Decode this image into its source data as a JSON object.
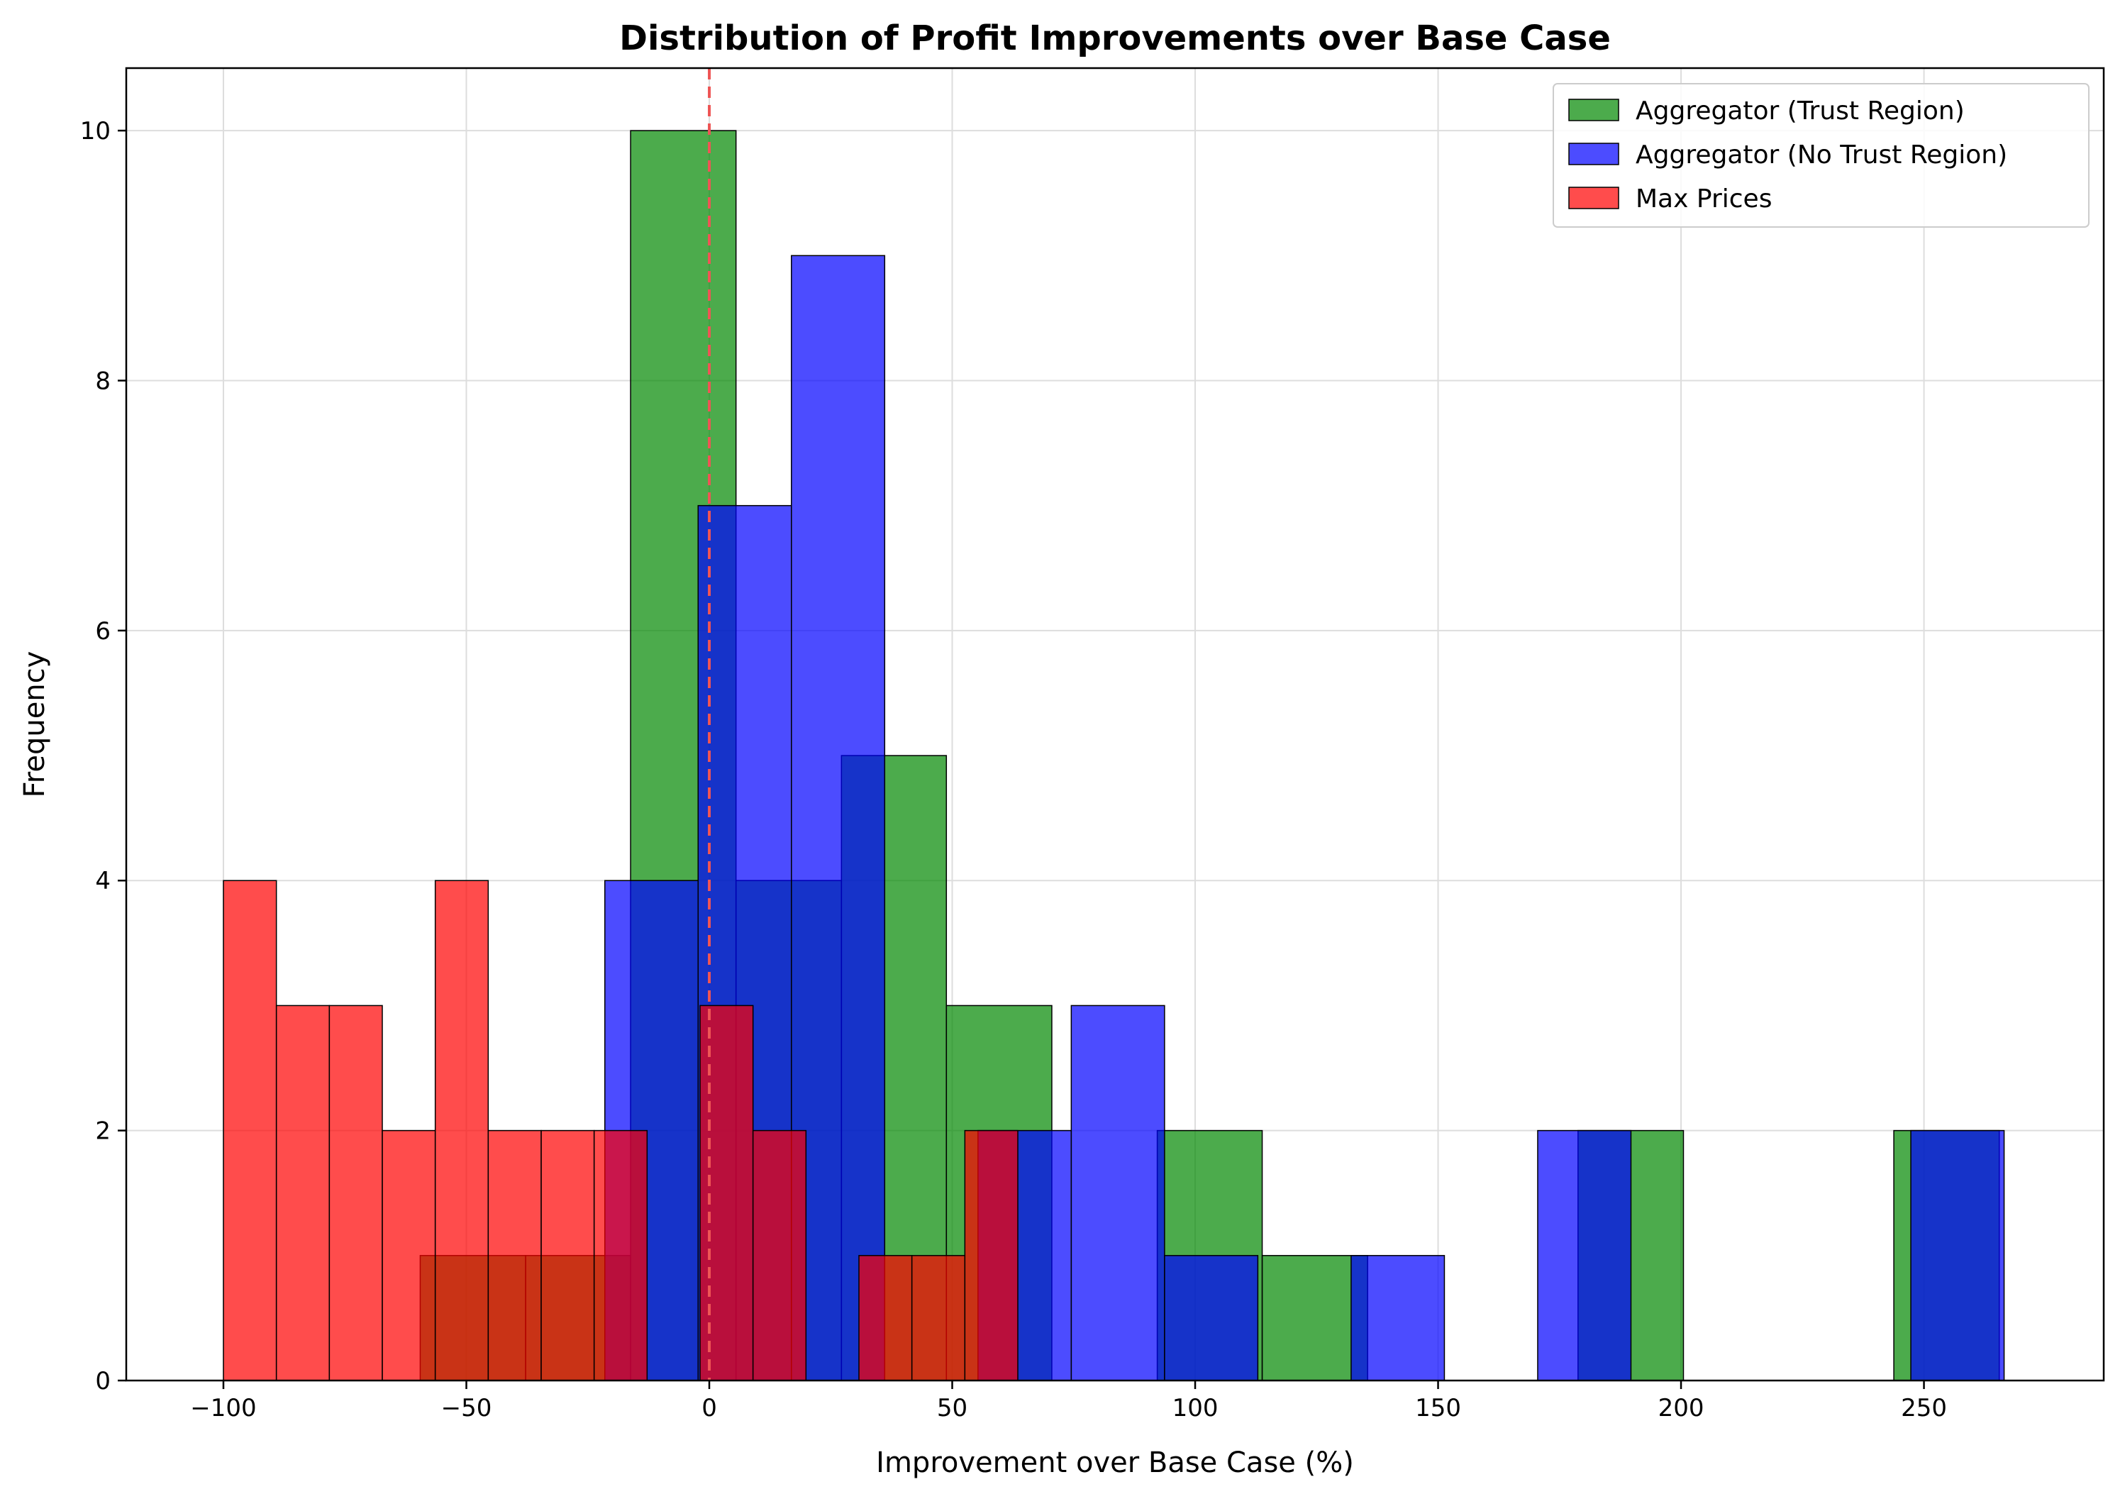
{
  "chart_data": {
    "type": "bar",
    "title": "Distribution of Profit Improvements over Base Case",
    "xlabel": "Improvement over Base Case (%)",
    "ylabel": "Frequency",
    "xlim": [
      -120,
      287
    ],
    "ylim": [
      0,
      10.5
    ],
    "xticks": [
      -100,
      -50,
      0,
      50,
      100,
      150,
      200,
      250
    ],
    "xtick_labels": [
      "−100",
      "−50",
      "0",
      "50",
      "100",
      "150",
      "200",
      "250"
    ],
    "yticks": [
      0,
      2,
      4,
      6,
      8,
      10
    ],
    "ytick_labels": [
      "0",
      "2",
      "4",
      "6",
      "8",
      "10"
    ],
    "grid": true,
    "legend_position": "top-right",
    "reference_line": {
      "x": 0,
      "color": "#ee5555",
      "style": "dashed"
    },
    "series": [
      {
        "name": "Aggregator (Trust Region)",
        "color": "#008800",
        "bins": [
          {
            "x0": -59.5,
            "x1": -37.8,
            "count": 1
          },
          {
            "x0": -37.8,
            "x1": -16.2,
            "count": 1
          },
          {
            "x0": -16.2,
            "x1": 5.5,
            "count": 10
          },
          {
            "x0": 5.5,
            "x1": 27.2,
            "count": 4
          },
          {
            "x0": 27.2,
            "x1": 48.8,
            "count": 5
          },
          {
            "x0": 48.8,
            "x1": 70.5,
            "count": 3
          },
          {
            "x0": 92.2,
            "x1": 113.8,
            "count": 2
          },
          {
            "x0": 113.8,
            "x1": 135.5,
            "count": 1
          },
          {
            "x0": 178.8,
            "x1": 200.5,
            "count": 2
          },
          {
            "x0": 243.8,
            "x1": 265.5,
            "count": 2
          }
        ]
      },
      {
        "name": "Aggregator (No Trust Region)",
        "color": "#0000ff",
        "bins": [
          {
            "x0": -21.5,
            "x1": -2.3,
            "count": 4
          },
          {
            "x0": -2.3,
            "x1": 16.9,
            "count": 7
          },
          {
            "x0": 16.9,
            "x1": 36.1,
            "count": 9
          },
          {
            "x0": 55.3,
            "x1": 74.5,
            "count": 2
          },
          {
            "x0": 74.5,
            "x1": 93.7,
            "count": 3
          },
          {
            "x0": 93.7,
            "x1": 112.9,
            "count": 1
          },
          {
            "x0": 132.1,
            "x1": 151.3,
            "count": 1
          },
          {
            "x0": 170.5,
            "x1": 189.7,
            "count": 2
          },
          {
            "x0": 247.3,
            "x1": 266.5,
            "count": 2
          }
        ]
      },
      {
        "name": "Max Prices",
        "color": "#ff0000",
        "bins": [
          {
            "x0": -100,
            "x1": -89.1,
            "count": 4
          },
          {
            "x0": -89.1,
            "x1": -78.2,
            "count": 3
          },
          {
            "x0": -78.2,
            "x1": -67.3,
            "count": 3
          },
          {
            "x0": -67.3,
            "x1": -56.4,
            "count": 2
          },
          {
            "x0": -56.4,
            "x1": -45.5,
            "count": 4
          },
          {
            "x0": -45.5,
            "x1": -34.6,
            "count": 2
          },
          {
            "x0": -34.6,
            "x1": -23.7,
            "count": 2
          },
          {
            "x0": -23.7,
            "x1": -12.8,
            "count": 2
          },
          {
            "x0": -1.9,
            "x1": 9.0,
            "count": 3
          },
          {
            "x0": 9.0,
            "x1": 19.9,
            "count": 2
          },
          {
            "x0": 30.8,
            "x1": 41.7,
            "count": 1
          },
          {
            "x0": 41.7,
            "x1": 52.6,
            "count": 1
          },
          {
            "x0": 52.6,
            "x1": 63.5,
            "count": 2
          }
        ]
      }
    ]
  }
}
